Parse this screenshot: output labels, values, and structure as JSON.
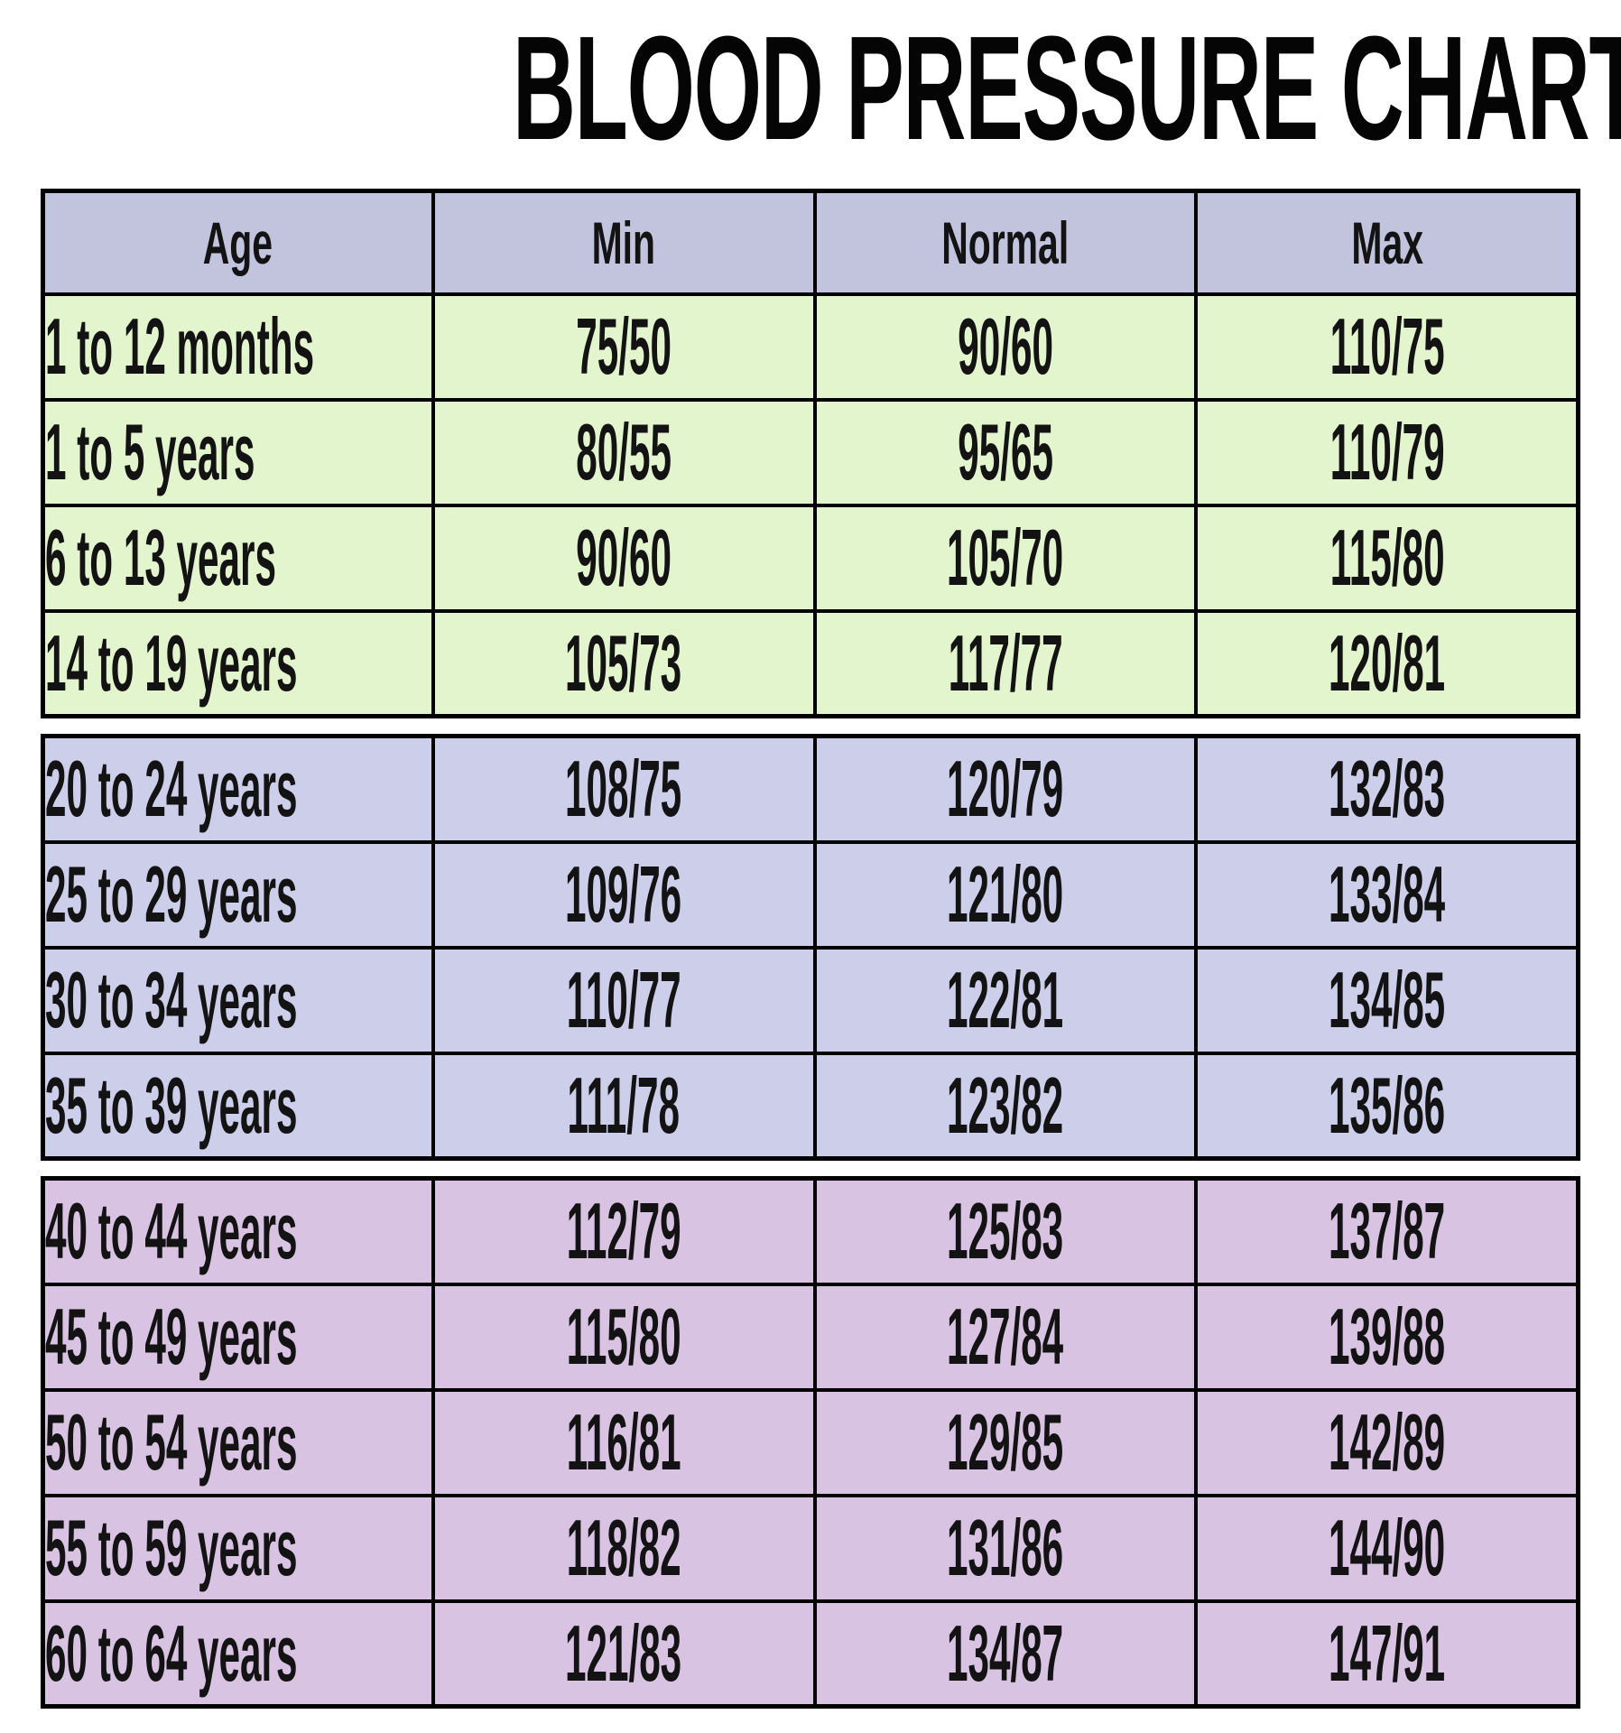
{
  "title": "BLOOD PRESSURE CHART BY AGE",
  "colors": {
    "page_bg": "#ffffff",
    "border": "#000000",
    "text": "#131313",
    "header_bg": "#c2c4de",
    "children_section_bg": "#e3f5cd",
    "young_adults_section_bg": "#cdceea",
    "older_adults_section_bg": "#d9c3e3"
  },
  "table": {
    "headers": {
      "age": "Age",
      "min": "Min",
      "normal": "Normal",
      "max": "Max"
    },
    "sections": [
      {
        "name": "children",
        "rows": [
          {
            "age": "1 to 12 months",
            "min": "75/50",
            "normal": "90/60",
            "max": "110/75"
          },
          {
            "age": "1 to 5 years",
            "min": "80/55",
            "normal": "95/65",
            "max": "110/79"
          },
          {
            "age": "6 to 13 years",
            "min": "90/60",
            "normal": "105/70",
            "max": "115/80"
          },
          {
            "age": "14 to 19 years",
            "min": "105/73",
            "normal": "117/77",
            "max": "120/81"
          }
        ]
      },
      {
        "name": "young-adults",
        "rows": [
          {
            "age": "20 to 24 years",
            "min": "108/75",
            "normal": "120/79",
            "max": "132/83"
          },
          {
            "age": "25 to 29 years",
            "min": "109/76",
            "normal": "121/80",
            "max": "133/84"
          },
          {
            "age": "30 to 34 years",
            "min": "110/77",
            "normal": "122/81",
            "max": "134/85"
          },
          {
            "age": "35 to 39 years",
            "min": "111/78",
            "normal": "123/82",
            "max": "135/86"
          }
        ]
      },
      {
        "name": "older-adults",
        "rows": [
          {
            "age": "40 to 44 years",
            "min": "112/79",
            "normal": "125/83",
            "max": "137/87"
          },
          {
            "age": "45 to 49 years",
            "min": "115/80",
            "normal": "127/84",
            "max": "139/88"
          },
          {
            "age": "50 to 54 years",
            "min": "116/81",
            "normal": "129/85",
            "max": "142/89"
          },
          {
            "age": "55 to 59 years",
            "min": "118/82",
            "normal": "131/86",
            "max": "144/90"
          },
          {
            "age": "60 to 64 years",
            "min": "121/83",
            "normal": "134/87",
            "max": "147/91"
          }
        ]
      }
    ]
  },
  "chart_data": {
    "type": "table",
    "title": "BLOOD PRESSURE CHART BY AGE",
    "columns": [
      "Age",
      "Min",
      "Normal",
      "Max"
    ],
    "rows": [
      [
        "1 to 12 months",
        "75/50",
        "90/60",
        "110/75"
      ],
      [
        "1 to 5 years",
        "80/55",
        "95/65",
        "110/79"
      ],
      [
        "6 to 13 years",
        "90/60",
        "105/70",
        "115/80"
      ],
      [
        "14 to 19 years",
        "105/73",
        "117/77",
        "120/81"
      ],
      [
        "20 to 24 years",
        "108/75",
        "120/79",
        "132/83"
      ],
      [
        "25 to 29 years",
        "109/76",
        "121/80",
        "133/84"
      ],
      [
        "30 to 34 years",
        "110/77",
        "122/81",
        "134/85"
      ],
      [
        "35 to 39 years",
        "111/78",
        "123/82",
        "135/86"
      ],
      [
        "40 to 44 years",
        "112/79",
        "125/83",
        "137/87"
      ],
      [
        "45 to 49 years",
        "115/80",
        "127/84",
        "139/88"
      ],
      [
        "50 to 54 years",
        "116/81",
        "129/85",
        "142/89"
      ],
      [
        "55 to 59 years",
        "118/82",
        "131/86",
        "144/90"
      ],
      [
        "60 to 64 years",
        "121/83",
        "134/87",
        "147/91"
      ]
    ],
    "layout": {
      "sections_row_counts": [
        4,
        4,
        5
      ],
      "grid": true,
      "legend": false
    }
  }
}
